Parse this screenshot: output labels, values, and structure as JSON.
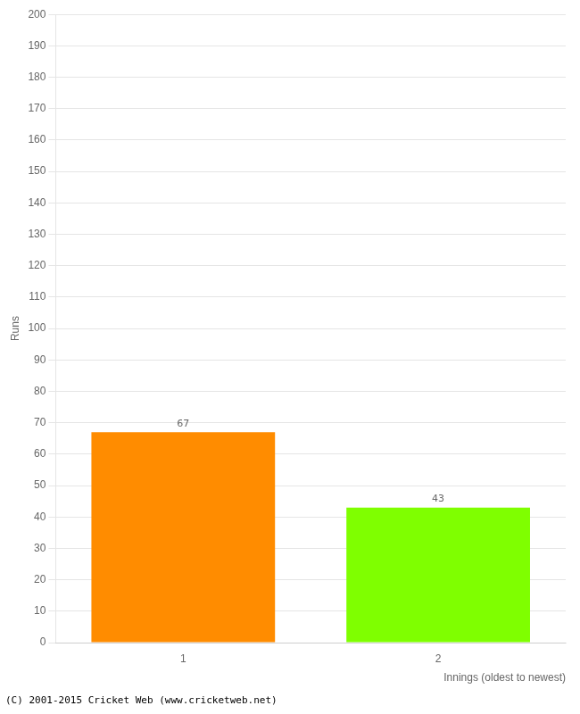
{
  "chart_data": {
    "type": "bar",
    "categories": [
      "1",
      "2"
    ],
    "values": [
      67,
      43
    ],
    "colors": [
      "#ff8c00",
      "#7fff00"
    ],
    "ylabel": "Runs",
    "xlabel": "Innings (oldest to newest)",
    "ylim": [
      0,
      200
    ],
    "yticks": [
      0,
      10,
      20,
      30,
      40,
      50,
      60,
      70,
      80,
      90,
      100,
      110,
      120,
      130,
      140,
      150,
      160,
      170,
      180,
      190,
      200
    ],
    "grid": true,
    "data_labels": true,
    "annotations": [
      "(C) 2001-2015 Cricket Web (www.cricketweb.net)"
    ]
  }
}
